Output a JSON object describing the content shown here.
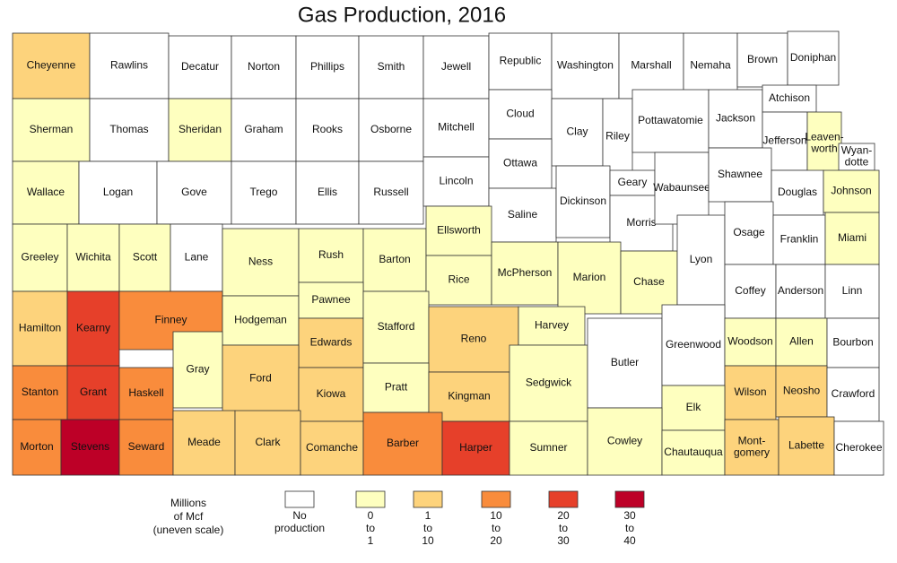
{
  "title": "Gas Production, 2016",
  "legend": {
    "title_lines": [
      "Millions",
      "of Mcf",
      "(uneven scale)"
    ],
    "classes": [
      {
        "lines": [
          "No",
          "production"
        ],
        "color": "#ffffff"
      },
      {
        "lines": [
          "0",
          "to",
          "1"
        ],
        "color": "#feffbf"
      },
      {
        "lines": [
          "1",
          "to",
          "10"
        ],
        "color": "#fdd37c"
      },
      {
        "lines": [
          "10",
          "to",
          "20"
        ],
        "color": "#f98c3c"
      },
      {
        "lines": [
          "20",
          "to",
          "30"
        ],
        "color": "#e6402a"
      },
      {
        "lines": [
          "30",
          "to",
          "40"
        ],
        "color": "#bd0027"
      }
    ]
  },
  "counties": [
    {
      "name": "Cheyenne",
      "class": 2
    },
    {
      "name": "Rawlins",
      "class": 0
    },
    {
      "name": "Decatur",
      "class": 0
    },
    {
      "name": "Norton",
      "class": 0
    },
    {
      "name": "Phillips",
      "class": 0
    },
    {
      "name": "Smith",
      "class": 0
    },
    {
      "name": "Jewell",
      "class": 0
    },
    {
      "name": "Republic",
      "class": 0
    },
    {
      "name": "Washington",
      "class": 0
    },
    {
      "name": "Marshall",
      "class": 0
    },
    {
      "name": "Nemaha",
      "class": 0
    },
    {
      "name": "Brown",
      "class": 0
    },
    {
      "name": "Doniphan",
      "class": 0
    },
    {
      "name": "Sherman",
      "class": 1
    },
    {
      "name": "Thomas",
      "class": 0
    },
    {
      "name": "Sheridan",
      "class": 1
    },
    {
      "name": "Graham",
      "class": 0
    },
    {
      "name": "Rooks",
      "class": 0
    },
    {
      "name": "Osborne",
      "class": 0
    },
    {
      "name": "Mitchell",
      "class": 0
    },
    {
      "name": "Cloud",
      "class": 0
    },
    {
      "name": "Clay",
      "class": 0
    },
    {
      "name": "Riley",
      "class": 0
    },
    {
      "name": "Pottawatomie",
      "class": 0
    },
    {
      "name": "Jackson",
      "class": 0
    },
    {
      "name": "Atchison",
      "class": 0
    },
    {
      "name": "Jefferson",
      "class": 0
    },
    {
      "name": [
        "Leaven-",
        "worth"
      ],
      "class": 1
    },
    {
      "name": [
        "Wyan-",
        "dotte"
      ],
      "class": 0
    },
    {
      "name": "Wallace",
      "class": 1
    },
    {
      "name": "Logan",
      "class": 0
    },
    {
      "name": "Gove",
      "class": 0
    },
    {
      "name": "Trego",
      "class": 0
    },
    {
      "name": "Ellis",
      "class": 0
    },
    {
      "name": "Russell",
      "class": 0
    },
    {
      "name": "Lincoln",
      "class": 0
    },
    {
      "name": "Ottawa",
      "class": 0
    },
    {
      "name": "Saline",
      "class": 0
    },
    {
      "name": "Dickinson",
      "class": 0
    },
    {
      "name": "Geary",
      "class": 0
    },
    {
      "name": "Morris",
      "class": 0
    },
    {
      "name": "Wabaunsee",
      "class": 0
    },
    {
      "name": "Shawnee",
      "class": 0
    },
    {
      "name": "Douglas",
      "class": 0
    },
    {
      "name": "Johnson",
      "class": 1
    },
    {
      "name": "Greeley",
      "class": 1
    },
    {
      "name": "Wichita",
      "class": 1
    },
    {
      "name": "Scott",
      "class": 1
    },
    {
      "name": "Lane",
      "class": 0
    },
    {
      "name": "Ness",
      "class": 1
    },
    {
      "name": "Rush",
      "class": 1
    },
    {
      "name": "Barton",
      "class": 1
    },
    {
      "name": "Ellsworth",
      "class": 1
    },
    {
      "name": "Rice",
      "class": 1
    },
    {
      "name": "McPherson",
      "class": 1
    },
    {
      "name": "Marion",
      "class": 1
    },
    {
      "name": "Chase",
      "class": 1
    },
    {
      "name": "Lyon",
      "class": 0
    },
    {
      "name": "Osage",
      "class": 0
    },
    {
      "name": "Franklin",
      "class": 0
    },
    {
      "name": "Miami",
      "class": 1
    },
    {
      "name": "Hamilton",
      "class": 2
    },
    {
      "name": "Kearny",
      "class": 4
    },
    {
      "name": "Finney",
      "class": 3
    },
    {
      "name": "Hodgeman",
      "class": 1
    },
    {
      "name": "Pawnee",
      "class": 1
    },
    {
      "name": "Edwards",
      "class": 2
    },
    {
      "name": "Stafford",
      "class": 1
    },
    {
      "name": "Reno",
      "class": 2
    },
    {
      "name": "Harvey",
      "class": 1
    },
    {
      "name": "Coffey",
      "class": 0
    },
    {
      "name": "Anderson",
      "class": 0
    },
    {
      "name": "Linn",
      "class": 0
    },
    {
      "name": "Gray",
      "class": 1
    },
    {
      "name": "Ford",
      "class": 2
    },
    {
      "name": "Kiowa",
      "class": 2
    },
    {
      "name": "Pratt",
      "class": 1
    },
    {
      "name": "Kingman",
      "class": 2
    },
    {
      "name": "Sedgwick",
      "class": 1
    },
    {
      "name": "Butler",
      "class": 0
    },
    {
      "name": "Greenwood",
      "class": 0
    },
    {
      "name": "Woodson",
      "class": 1
    },
    {
      "name": "Allen",
      "class": 1
    },
    {
      "name": "Bourbon",
      "class": 0
    },
    {
      "name": "Stanton",
      "class": 3
    },
    {
      "name": "Grant",
      "class": 4
    },
    {
      "name": "Haskell",
      "class": 3
    },
    {
      "name": "Wilson",
      "class": 2
    },
    {
      "name": "Neosho",
      "class": 2
    },
    {
      "name": "Crawford",
      "class": 0
    },
    {
      "name": "Elk",
      "class": 1
    },
    {
      "name": "Morton",
      "class": 3
    },
    {
      "name": "Stevens",
      "class": 5
    },
    {
      "name": "Seward",
      "class": 3
    },
    {
      "name": "Meade",
      "class": 2
    },
    {
      "name": "Clark",
      "class": 2
    },
    {
      "name": "Comanche",
      "class": 2
    },
    {
      "name": "Barber",
      "class": 3
    },
    {
      "name": "Harper",
      "class": 4
    },
    {
      "name": "Sumner",
      "class": 1
    },
    {
      "name": "Cowley",
      "class": 1
    },
    {
      "name": "Chautauqua",
      "class": 1
    },
    {
      "name": [
        "Mont-",
        "gomery"
      ],
      "class": 2
    },
    {
      "name": "Labette",
      "class": 2
    },
    {
      "name": "Cherokee",
      "class": 0
    }
  ]
}
